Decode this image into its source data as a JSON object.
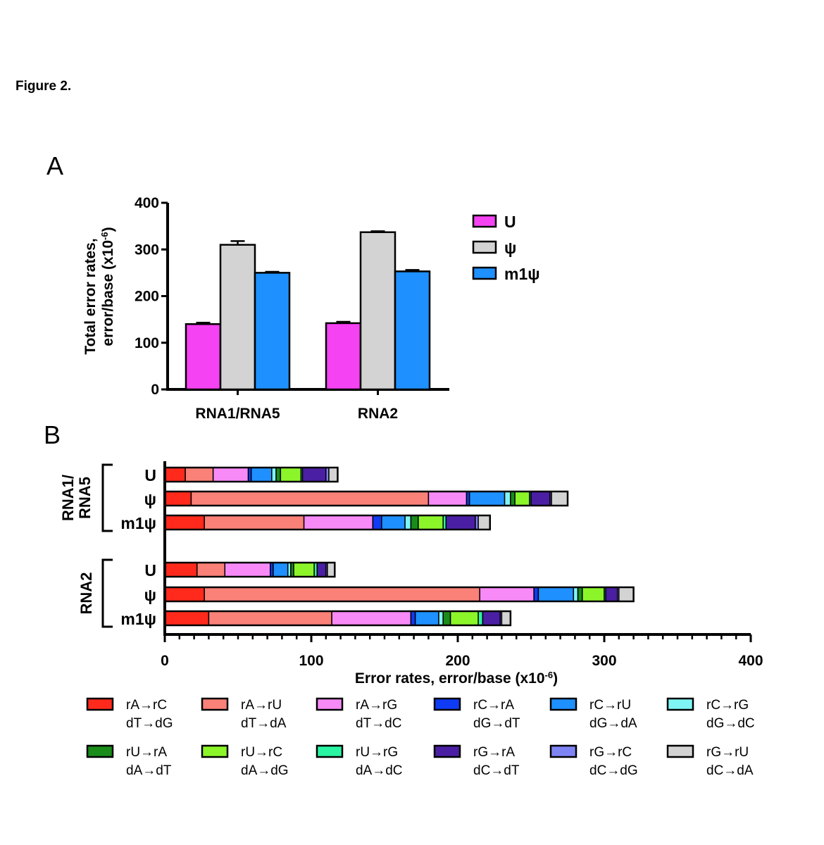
{
  "figure_title": "Figure 2.",
  "chart_data": [
    {
      "panel": "A",
      "type": "bar",
      "ylabel_line1": "Total error rates,",
      "ylabel_line2": "error/base (x10",
      "ylabel_exp": "-6",
      "ylabel_close": ")",
      "ylim": [
        0,
        400
      ],
      "yticks": [
        0,
        100,
        200,
        300,
        400
      ],
      "categories": [
        "RNA1/RNA5",
        "RNA2"
      ],
      "series": [
        {
          "name": "U",
          "color": "#f542f2",
          "values": [
            140,
            142
          ],
          "errors": [
            3,
            3
          ]
        },
        {
          "name": "ψ",
          "color": "#d3d3d3",
          "values": [
            310,
            337
          ],
          "errors": [
            8,
            2
          ]
        },
        {
          "name": "m1ψ",
          "color": "#1e90ff",
          "values": [
            250,
            253
          ],
          "errors": [
            2,
            3
          ]
        }
      ],
      "legend_position": "top-right"
    },
    {
      "panel": "B",
      "type": "stacked-bar-horizontal",
      "xlabel": "Error rates, error/base (x10",
      "xlabel_exp": "-6",
      "xlabel_close": ")",
      "xlim": [
        0,
        400
      ],
      "xticks": [
        0,
        100,
        200,
        300,
        400
      ],
      "groups": [
        {
          "label_line1": "RNA1/",
          "label_line2": "RNA5",
          "bars": [
            {
              "label": "U",
              "values": [
                14,
                19,
                24,
                2,
                14,
                3,
                3,
                14,
                1,
                16,
                2,
                6
              ]
            },
            {
              "label": "ψ",
              "values": [
                18,
                162,
                26,
                2,
                24,
                4,
                3,
                10,
                1,
                13,
                1,
                11
              ]
            },
            {
              "label": "m1ψ",
              "values": [
                27,
                68,
                47,
                6,
                16,
                4,
                5,
                17,
                2,
                20,
                2,
                8
              ]
            }
          ]
        },
        {
          "label_line1": "RNA2",
          "label_line2": "",
          "bars": [
            {
              "label": "U",
              "values": [
                22,
                19,
                31,
                2,
                10,
                2,
                2,
                14,
                2,
                6,
                1,
                5
              ]
            },
            {
              "label": "ψ",
              "values": [
                27,
                188,
                37,
                3,
                24,
                3,
                3,
                15,
                1,
                8,
                1,
                10
              ]
            },
            {
              "label": "m1ψ",
              "values": [
                30,
                84,
                54,
                3,
                16,
                3,
                5,
                19,
                3,
                12,
                1,
                6
              ]
            }
          ]
        }
      ],
      "categories": [
        {
          "line1": "rA→rC",
          "line2": "dT→dG",
          "color": "#ff2a1c"
        },
        {
          "line1": "rA→rU",
          "line2": "dT→dA",
          "color": "#f98177"
        },
        {
          "line1": "rA→rG",
          "line2": "dT→dC",
          "color": "#f78af7"
        },
        {
          "line1": "rC→rA",
          "line2": "dG→dT",
          "color": "#0f3bf5"
        },
        {
          "line1": "rC→rU",
          "line2": "dG→dA",
          "color": "#1e90ff"
        },
        {
          "line1": "rC→rG",
          "line2": "dG→dC",
          "color": "#7ff5f5"
        },
        {
          "line1": "rU→rA",
          "line2": "dA→dT",
          "color": "#1a8c1a"
        },
        {
          "line1": "rU→rC",
          "line2": "dA→dG",
          "color": "#8cf52a"
        },
        {
          "line1": "rU→rG",
          "line2": "dA→dC",
          "color": "#2af5a3"
        },
        {
          "line1": "rG→rA",
          "line2": "dC→dT",
          "color": "#4b1fa3"
        },
        {
          "line1": "rG→rC",
          "line2": "dC→dG",
          "color": "#7f84f5"
        },
        {
          "line1": "rG→rU",
          "line2": "dC→dA",
          "color": "#d3d3d3"
        }
      ]
    }
  ]
}
